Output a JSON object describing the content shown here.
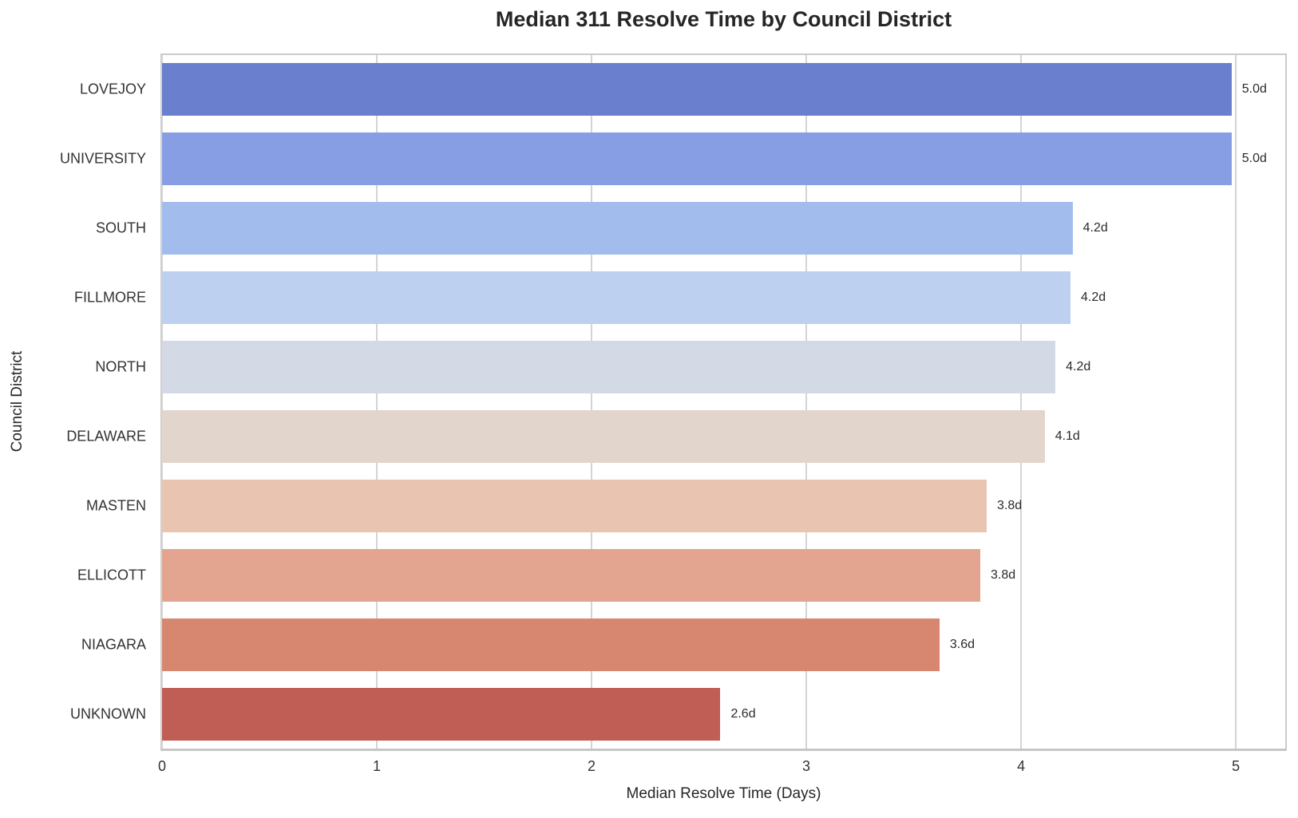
{
  "chart_data": {
    "type": "bar",
    "orientation": "horizontal",
    "title": "Median 311 Resolve Time by Council District",
    "xlabel": "Median Resolve Time (Days)",
    "ylabel": "Council District",
    "categories": [
      "LOVEJOY",
      "UNIVERSITY",
      "SOUTH",
      "FILLMORE",
      "NORTH",
      "DELAWARE",
      "MASTEN",
      "ELLICOTT",
      "NIAGARA",
      "UNKNOWN"
    ],
    "values": [
      5.0,
      5.0,
      4.2,
      4.2,
      4.2,
      4.1,
      3.8,
      3.8,
      3.6,
      2.6
    ],
    "bar_lengths_days": [
      4.98,
      4.98,
      4.24,
      4.23,
      4.16,
      4.11,
      3.84,
      3.81,
      3.62,
      2.6
    ],
    "value_labels": [
      "5.0d",
      "5.0d",
      "4.2d",
      "4.2d",
      "4.2d",
      "4.1d",
      "3.8d",
      "3.8d",
      "3.6d",
      "2.6d"
    ],
    "bar_colors": [
      "#6a80cf",
      "#879ee5",
      "#a3bcee",
      "#bdd0ef",
      "#d3d9e5",
      "#e2d6cc",
      "#e9c4b0",
      "#e3a58f",
      "#d7866f",
      "#c05d55"
    ],
    "x_ticks": [
      0,
      1,
      2,
      3,
      4,
      5
    ],
    "xlim": [
      0,
      5.23
    ],
    "grid": "vertical",
    "legend": "none",
    "style": {
      "background": "#ffffff",
      "grid_color": "#d4d4d4",
      "spine_color": "#cbcbcb",
      "title_color": "#262626",
      "tick_label_color": "#333333",
      "value_label_color": "#2b2b2b"
    }
  }
}
